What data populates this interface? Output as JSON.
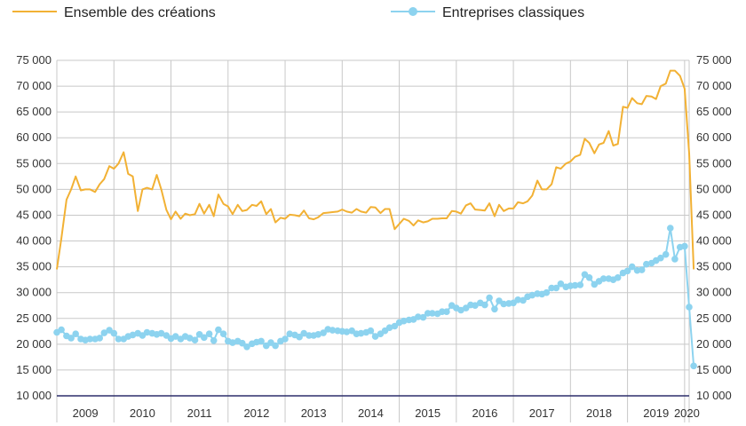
{
  "chart_data": {
    "type": "line",
    "title": "",
    "xlabel": "",
    "ylabel": "",
    "ylim": [
      10000,
      75000
    ],
    "y_ticks": [
      10000,
      15000,
      20000,
      25000,
      30000,
      35000,
      40000,
      45000,
      50000,
      55000,
      60000,
      65000,
      70000,
      75000
    ],
    "y_tick_labels": [
      "10 000",
      "15 000",
      "20 000",
      "25 000",
      "30 000",
      "35 000",
      "40 000",
      "45 000",
      "50 000",
      "55 000",
      "60 000",
      "65 000",
      "70 000",
      "75 000"
    ],
    "x_categories": [
      "2009",
      "2010",
      "2011",
      "2012",
      "2013",
      "2014",
      "2015",
      "2016",
      "2017",
      "2018",
      "2019",
      "2020"
    ],
    "x_range": [
      2009.0,
      2020.08
    ],
    "grid": "both",
    "legend_position": "top",
    "series": [
      {
        "name": "Ensemble des créations",
        "color": "#f2b134",
        "marker": "none",
        "points": [
          [
            2009.0,
            34500
          ],
          [
            2009.08,
            40500
          ],
          [
            2009.17,
            48000
          ],
          [
            2009.25,
            50000
          ],
          [
            2009.33,
            52500
          ],
          [
            2009.42,
            49800
          ],
          [
            2009.5,
            50000
          ],
          [
            2009.58,
            50000
          ],
          [
            2009.67,
            49500
          ],
          [
            2009.75,
            51000
          ],
          [
            2009.83,
            52000
          ],
          [
            2009.92,
            54500
          ],
          [
            2010.0,
            54000
          ],
          [
            2010.08,
            55000
          ],
          [
            2010.17,
            57200
          ],
          [
            2010.25,
            53000
          ],
          [
            2010.33,
            52500
          ],
          [
            2010.42,
            45800
          ],
          [
            2010.5,
            50000
          ],
          [
            2010.58,
            50300
          ],
          [
            2010.67,
            50000
          ],
          [
            2010.75,
            52800
          ],
          [
            2010.83,
            50000
          ],
          [
            2010.92,
            46000
          ],
          [
            2011.0,
            44200
          ],
          [
            2011.08,
            45700
          ],
          [
            2011.17,
            44300
          ],
          [
            2011.25,
            45300
          ],
          [
            2011.33,
            45000
          ],
          [
            2011.42,
            45200
          ],
          [
            2011.5,
            47200
          ],
          [
            2011.58,
            45300
          ],
          [
            2011.67,
            47000
          ],
          [
            2011.75,
            44800
          ],
          [
            2011.83,
            49000
          ],
          [
            2011.92,
            47200
          ],
          [
            2012.0,
            46700
          ],
          [
            2012.08,
            45200
          ],
          [
            2012.17,
            47000
          ],
          [
            2012.25,
            45800
          ],
          [
            2012.33,
            46000
          ],
          [
            2012.42,
            47000
          ],
          [
            2012.5,
            46800
          ],
          [
            2012.58,
            47700
          ],
          [
            2012.67,
            45200
          ],
          [
            2012.75,
            46200
          ],
          [
            2012.83,
            43600
          ],
          [
            2012.92,
            44500
          ],
          [
            2013.0,
            44300
          ],
          [
            2013.08,
            45100
          ],
          [
            2013.17,
            45000
          ],
          [
            2013.25,
            44800
          ],
          [
            2013.33,
            45900
          ],
          [
            2013.42,
            44400
          ],
          [
            2013.5,
            44200
          ],
          [
            2013.58,
            44600
          ],
          [
            2013.67,
            45400
          ],
          [
            2013.75,
            45500
          ],
          [
            2013.83,
            45600
          ],
          [
            2013.92,
            45700
          ],
          [
            2014.0,
            46100
          ],
          [
            2014.08,
            45700
          ],
          [
            2014.17,
            45500
          ],
          [
            2014.25,
            46200
          ],
          [
            2014.33,
            45700
          ],
          [
            2014.42,
            45500
          ],
          [
            2014.5,
            46600
          ],
          [
            2014.58,
            46500
          ],
          [
            2014.67,
            45400
          ],
          [
            2014.75,
            46200
          ],
          [
            2014.83,
            46200
          ],
          [
            2014.92,
            42300
          ],
          [
            2015.0,
            43300
          ],
          [
            2015.08,
            44300
          ],
          [
            2015.17,
            43900
          ],
          [
            2015.25,
            43000
          ],
          [
            2015.33,
            44000
          ],
          [
            2015.42,
            43600
          ],
          [
            2015.5,
            43800
          ],
          [
            2015.58,
            44300
          ],
          [
            2015.67,
            44300
          ],
          [
            2015.75,
            44400
          ],
          [
            2015.83,
            44400
          ],
          [
            2015.92,
            45800
          ],
          [
            2016.0,
            45700
          ],
          [
            2016.08,
            45300
          ],
          [
            2016.17,
            46900
          ],
          [
            2016.25,
            47300
          ],
          [
            2016.33,
            46100
          ],
          [
            2016.42,
            46000
          ],
          [
            2016.5,
            45900
          ],
          [
            2016.58,
            47300
          ],
          [
            2016.67,
            44800
          ],
          [
            2016.75,
            47000
          ],
          [
            2016.83,
            45800
          ],
          [
            2016.92,
            46300
          ],
          [
            2017.0,
            46300
          ],
          [
            2017.08,
            47500
          ],
          [
            2017.17,
            47300
          ],
          [
            2017.25,
            47700
          ],
          [
            2017.33,
            48800
          ],
          [
            2017.42,
            51700
          ],
          [
            2017.5,
            50000
          ],
          [
            2017.58,
            50000
          ],
          [
            2017.67,
            51000
          ],
          [
            2017.75,
            54300
          ],
          [
            2017.83,
            54000
          ],
          [
            2017.92,
            55000
          ],
          [
            2018.0,
            55400
          ],
          [
            2018.08,
            56300
          ],
          [
            2018.17,
            56700
          ],
          [
            2018.25,
            59800
          ],
          [
            2018.33,
            59000
          ],
          [
            2018.42,
            57000
          ],
          [
            2018.5,
            58700
          ],
          [
            2018.58,
            59000
          ],
          [
            2018.67,
            61300
          ],
          [
            2018.75,
            58500
          ],
          [
            2018.83,
            58800
          ],
          [
            2018.92,
            66000
          ],
          [
            2019.0,
            65800
          ],
          [
            2019.08,
            67700
          ],
          [
            2019.17,
            66700
          ],
          [
            2019.25,
            66500
          ],
          [
            2019.33,
            68100
          ],
          [
            2019.42,
            68000
          ],
          [
            2019.5,
            67500
          ],
          [
            2019.58,
            70000
          ],
          [
            2019.67,
            70500
          ],
          [
            2019.75,
            73000
          ],
          [
            2019.83,
            73000
          ],
          [
            2019.92,
            72000
          ],
          [
            2020.0,
            69500
          ],
          [
            2020.08,
            57000
          ],
          [
            2020.16,
            34500
          ]
        ]
      },
      {
        "name": "Entreprises classiques",
        "color": "#8dd3ef",
        "marker": "circle",
        "points": [
          [
            2009.0,
            22300
          ],
          [
            2009.08,
            22800
          ],
          [
            2009.17,
            21600
          ],
          [
            2009.25,
            21200
          ],
          [
            2009.33,
            22000
          ],
          [
            2009.42,
            21000
          ],
          [
            2009.5,
            20800
          ],
          [
            2009.58,
            21000
          ],
          [
            2009.67,
            21000
          ],
          [
            2009.75,
            21200
          ],
          [
            2009.83,
            22200
          ],
          [
            2009.92,
            22700
          ],
          [
            2010.0,
            22100
          ],
          [
            2010.08,
            21000
          ],
          [
            2010.17,
            21000
          ],
          [
            2010.25,
            21500
          ],
          [
            2010.33,
            21800
          ],
          [
            2010.42,
            22100
          ],
          [
            2010.5,
            21700
          ],
          [
            2010.58,
            22300
          ],
          [
            2010.67,
            22100
          ],
          [
            2010.75,
            21900
          ],
          [
            2010.83,
            22100
          ],
          [
            2010.92,
            21700
          ],
          [
            2011.0,
            21100
          ],
          [
            2011.08,
            21500
          ],
          [
            2011.17,
            21000
          ],
          [
            2011.25,
            21500
          ],
          [
            2011.33,
            21200
          ],
          [
            2011.42,
            20800
          ],
          [
            2011.5,
            21900
          ],
          [
            2011.58,
            21300
          ],
          [
            2011.67,
            22000
          ],
          [
            2011.75,
            20700
          ],
          [
            2011.83,
            22800
          ],
          [
            2011.92,
            22000
          ],
          [
            2012.0,
            20600
          ],
          [
            2012.08,
            20300
          ],
          [
            2012.17,
            20600
          ],
          [
            2012.25,
            20200
          ],
          [
            2012.33,
            19500
          ],
          [
            2012.42,
            20100
          ],
          [
            2012.5,
            20400
          ],
          [
            2012.58,
            20600
          ],
          [
            2012.67,
            19700
          ],
          [
            2012.75,
            20300
          ],
          [
            2012.83,
            19700
          ],
          [
            2012.92,
            20600
          ],
          [
            2013.0,
            21000
          ],
          [
            2013.08,
            22000
          ],
          [
            2013.17,
            21800
          ],
          [
            2013.25,
            21400
          ],
          [
            2013.33,
            22100
          ],
          [
            2013.42,
            21700
          ],
          [
            2013.5,
            21700
          ],
          [
            2013.58,
            21900
          ],
          [
            2013.67,
            22200
          ],
          [
            2013.75,
            22900
          ],
          [
            2013.83,
            22700
          ],
          [
            2013.92,
            22600
          ],
          [
            2014.0,
            22500
          ],
          [
            2014.08,
            22400
          ],
          [
            2014.17,
            22600
          ],
          [
            2014.25,
            22000
          ],
          [
            2014.33,
            22100
          ],
          [
            2014.42,
            22300
          ],
          [
            2014.5,
            22600
          ],
          [
            2014.58,
            21500
          ],
          [
            2014.67,
            22000
          ],
          [
            2014.75,
            22600
          ],
          [
            2014.83,
            23200
          ],
          [
            2014.92,
            23500
          ],
          [
            2015.0,
            24200
          ],
          [
            2015.08,
            24500
          ],
          [
            2015.17,
            24700
          ],
          [
            2015.25,
            24800
          ],
          [
            2015.33,
            25300
          ],
          [
            2015.42,
            25200
          ],
          [
            2015.5,
            26000
          ],
          [
            2015.58,
            26000
          ],
          [
            2015.67,
            25900
          ],
          [
            2015.75,
            26300
          ],
          [
            2015.83,
            26300
          ],
          [
            2015.92,
            27500
          ],
          [
            2016.0,
            27000
          ],
          [
            2016.08,
            26600
          ],
          [
            2016.17,
            27000
          ],
          [
            2016.25,
            27600
          ],
          [
            2016.33,
            27500
          ],
          [
            2016.42,
            28000
          ],
          [
            2016.5,
            27600
          ],
          [
            2016.58,
            29000
          ],
          [
            2016.67,
            26800
          ],
          [
            2016.75,
            28400
          ],
          [
            2016.83,
            27800
          ],
          [
            2016.92,
            27900
          ],
          [
            2017.0,
            28000
          ],
          [
            2017.08,
            28600
          ],
          [
            2017.17,
            28500
          ],
          [
            2017.25,
            29200
          ],
          [
            2017.33,
            29500
          ],
          [
            2017.42,
            29800
          ],
          [
            2017.5,
            29700
          ],
          [
            2017.58,
            30000
          ],
          [
            2017.67,
            30900
          ],
          [
            2017.75,
            30900
          ],
          [
            2017.83,
            31700
          ],
          [
            2017.92,
            31100
          ],
          [
            2018.0,
            31300
          ],
          [
            2018.08,
            31400
          ],
          [
            2018.17,
            31500
          ],
          [
            2018.25,
            33500
          ],
          [
            2018.33,
            32900
          ],
          [
            2018.42,
            31600
          ],
          [
            2018.5,
            32200
          ],
          [
            2018.58,
            32700
          ],
          [
            2018.67,
            32700
          ],
          [
            2018.75,
            32500
          ],
          [
            2018.83,
            32900
          ],
          [
            2018.92,
            33800
          ],
          [
            2019.0,
            34200
          ],
          [
            2019.08,
            35000
          ],
          [
            2019.17,
            34300
          ],
          [
            2019.25,
            34400
          ],
          [
            2019.33,
            35500
          ],
          [
            2019.42,
            35700
          ],
          [
            2019.5,
            36200
          ],
          [
            2019.58,
            36700
          ],
          [
            2019.67,
            37400
          ],
          [
            2019.75,
            42500
          ],
          [
            2019.83,
            36500
          ],
          [
            2019.92,
            38800
          ],
          [
            2020.0,
            39000
          ],
          [
            2020.08,
            27200
          ],
          [
            2020.16,
            15800
          ]
        ]
      }
    ]
  }
}
